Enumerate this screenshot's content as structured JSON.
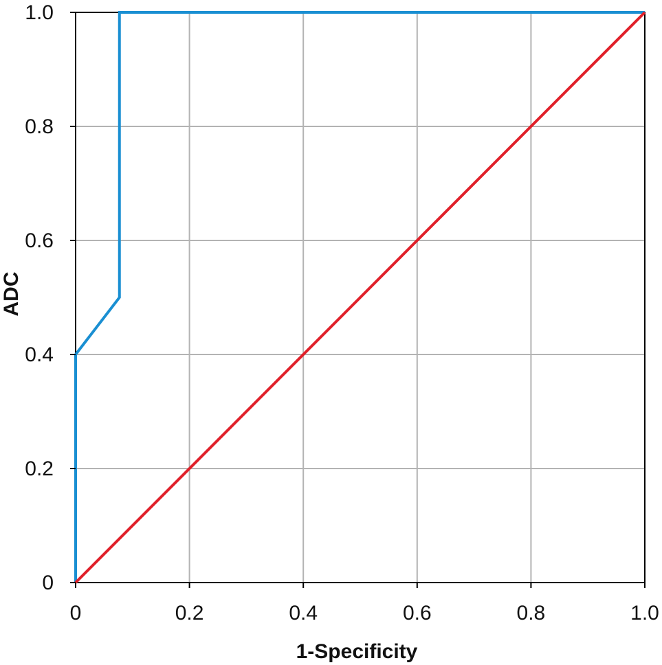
{
  "chart_data": {
    "type": "line",
    "title": "",
    "xlabel": "1-Specificity",
    "ylabel": "ADC",
    "xlim": [
      0,
      1
    ],
    "ylim": [
      0,
      1
    ],
    "grid": true,
    "legend": "none",
    "x_ticks": [
      {
        "value": 0,
        "label": "0"
      },
      {
        "value": 0.2,
        "label": "0.2"
      },
      {
        "value": 0.4,
        "label": "0.4"
      },
      {
        "value": 0.6,
        "label": "0.6"
      },
      {
        "value": 0.8,
        "label": "0.8"
      },
      {
        "value": 1.0,
        "label": "1.0"
      }
    ],
    "y_ticks": [
      {
        "value": 0,
        "label": "0"
      },
      {
        "value": 0.2,
        "label": "0.2"
      },
      {
        "value": 0.4,
        "label": "0.4"
      },
      {
        "value": 0.6,
        "label": "0.6"
      },
      {
        "value": 0.8,
        "label": "0.8"
      },
      {
        "value": 1.0,
        "label": "1.0"
      }
    ],
    "series": [
      {
        "color": "#1a8fd2",
        "points": [
          {
            "x": 0,
            "y": 0
          },
          {
            "x": 0,
            "y": 0.4
          },
          {
            "x": 0.077,
            "y": 0.5
          },
          {
            "x": 0.077,
            "y": 1.0
          },
          {
            "x": 1.0,
            "y": 1.0
          }
        ]
      },
      {
        "color": "#e0202a",
        "points": [
          {
            "x": 0,
            "y": 0
          },
          {
            "x": 1.0,
            "y": 1.0
          }
        ]
      }
    ]
  }
}
